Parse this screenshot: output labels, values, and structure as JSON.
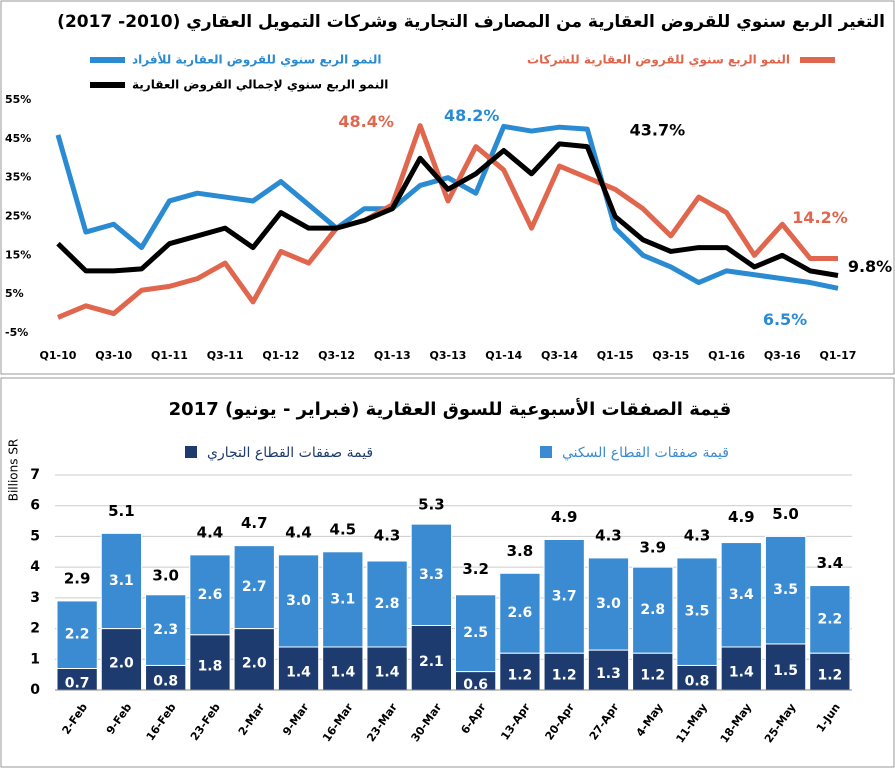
{
  "chart_data": [
    {
      "type": "line",
      "title": "التغير الربع سنوي للقروض العقارية من المصارف التجارية وشركات التمويل العقاري (2010- 2017)",
      "categories": [
        "Q1-10",
        null,
        "Q3-10",
        null,
        "Q1-11",
        null,
        "Q3-11",
        null,
        "Q1-12",
        null,
        "Q3-12",
        null,
        "Q1-13",
        null,
        "Q3-13",
        null,
        "Q1-14",
        null,
        "Q3-14",
        null,
        "Q1-15",
        null,
        "Q3-15",
        null,
        "Q1-16",
        null,
        "Q3-16",
        null,
        "Q1-17"
      ],
      "ylim": [
        -5,
        55
      ],
      "yticks": [
        {
          "value": -5,
          "label": "-5%"
        },
        {
          "value": 5,
          "label": "5%"
        },
        {
          "value": 15,
          "label": "15%"
        },
        {
          "value": 25,
          "label": "25%"
        },
        {
          "value": 35,
          "label": "35%"
        },
        {
          "value": 45,
          "label": "45%"
        },
        {
          "value": 55,
          "label": "55%"
        }
      ],
      "series": [
        {
          "name": "النمو الربع سنوي للقروض العقارية للأفراد",
          "color": "#2a8bd2",
          "values": [
            46,
            21,
            23,
            17,
            29,
            31,
            30,
            29,
            34,
            28,
            22,
            27,
            27,
            33,
            35,
            31,
            48.2,
            47,
            48,
            47.5,
            22,
            15,
            12,
            8,
            11,
            10,
            9,
            8,
            6.5
          ],
          "value_labels": [
            null,
            null,
            null,
            null,
            null,
            null,
            null,
            null,
            null,
            null,
            null,
            null,
            null,
            null,
            null,
            null,
            "48.2%",
            null,
            null,
            null,
            null,
            null,
            null,
            null,
            null,
            null,
            null,
            null,
            "6.5%"
          ]
        },
        {
          "name": "النمو الربع سنوي للقروض العقارية للشركات",
          "color": "#e0664e",
          "values": [
            -1,
            2,
            0,
            6,
            7,
            9,
            13,
            3,
            16,
            13,
            22,
            24,
            28,
            48.4,
            29,
            43,
            37,
            22,
            38,
            35,
            32,
            27,
            20,
            30,
            26,
            15,
            23,
            14.2,
            14.2
          ],
          "value_labels": [
            null,
            null,
            null,
            null,
            null,
            null,
            null,
            null,
            null,
            null,
            null,
            null,
            null,
            "48.4%",
            null,
            null,
            null,
            null,
            null,
            null,
            null,
            null,
            null,
            null,
            null,
            null,
            null,
            null,
            "14.2%"
          ]
        },
        {
          "name": "النمو الربع سنوي لإجمالي القروض العقارية",
          "color": "#000000",
          "values": [
            18,
            11,
            11,
            11.5,
            18,
            20,
            22,
            17,
            26,
            22,
            22,
            24,
            27,
            40,
            32,
            36,
            42,
            36,
            43.7,
            43,
            25,
            19,
            16,
            17,
            17,
            12,
            15,
            11,
            9.8
          ],
          "value_labels": [
            null,
            null,
            null,
            null,
            null,
            null,
            null,
            null,
            null,
            null,
            null,
            null,
            null,
            null,
            null,
            null,
            null,
            null,
            "43.7%",
            null,
            null,
            null,
            null,
            null,
            null,
            null,
            null,
            null,
            "9.8%"
          ]
        }
      ]
    },
    {
      "type": "bar",
      "stacked": true,
      "title": "قيمة الصفقات الأسبوعية للسوق العقارية (فبراير - يونيو) 2017",
      "y_label": "Billions SR",
      "categories": [
        "2-Feb",
        "9-Feb",
        "16-Feb",
        "23-Feb",
        "2-Mar",
        "9-Mar",
        "16-Mar",
        "23-Mar",
        "30-Mar",
        "6-Apr",
        "13-Apr",
        "20-Apr",
        "27-Apr",
        "4-May",
        "11-May",
        "18-May",
        "25-May",
        "1-Jun"
      ],
      "ylim": [
        0,
        7
      ],
      "yticks": [
        0,
        1,
        2,
        3,
        4,
        5,
        6,
        7
      ],
      "grid": true,
      "series": [
        {
          "name": "قيمة صفقات القطاع التجاري",
          "color": "#1d3b6e",
          "values": [
            0.7,
            2.0,
            0.8,
            1.8,
            2.0,
            1.4,
            1.4,
            1.4,
            2.1,
            0.6,
            1.2,
            1.2,
            1.3,
            1.2,
            0.8,
            1.4,
            1.5,
            1.2
          ],
          "value_labels": [
            "0.7",
            "2.0",
            "0.8",
            "1.8",
            "2.0",
            "1.4",
            "1.4",
            "1.4",
            "2.1",
            "0.6",
            "1.2",
            "1.2",
            "1.3",
            "1.2",
            "0.8",
            "1.4",
            "1.5",
            "1.2"
          ]
        },
        {
          "name": "قيمة صفقات القطاع السكني",
          "color": "#3a8bd1",
          "values": [
            2.2,
            3.1,
            2.3,
            2.6,
            2.7,
            3.0,
            3.1,
            2.8,
            3.3,
            2.5,
            2.6,
            3.7,
            3.0,
            2.8,
            3.5,
            3.4,
            3.5,
            2.2
          ],
          "value_labels": [
            "2.2",
            "3.1",
            "2.3",
            "2.6",
            "2.7",
            "3.0",
            "3.1",
            "2.8",
            "3.3",
            "2.5",
            "2.6",
            "3.7",
            "3.0",
            "2.8",
            "3.5",
            "3.4",
            "3.5",
            "2.2"
          ]
        }
      ],
      "totals": {
        "values": [
          2.9,
          5.1,
          3.0,
          4.4,
          4.7,
          4.4,
          4.5,
          4.3,
          5.3,
          3.2,
          3.8,
          4.9,
          4.3,
          3.9,
          4.3,
          4.9,
          5.0,
          3.4
        ],
        "value_labels": [
          "2.9",
          "5.1",
          "3.0",
          "4.4",
          "4.7",
          "4.4",
          "4.5",
          "4.3",
          "5.3",
          "3.2",
          "3.8",
          "4.9",
          "4.3",
          "3.9",
          "4.3",
          "4.9",
          "5.0",
          "3.4"
        ]
      }
    }
  ]
}
